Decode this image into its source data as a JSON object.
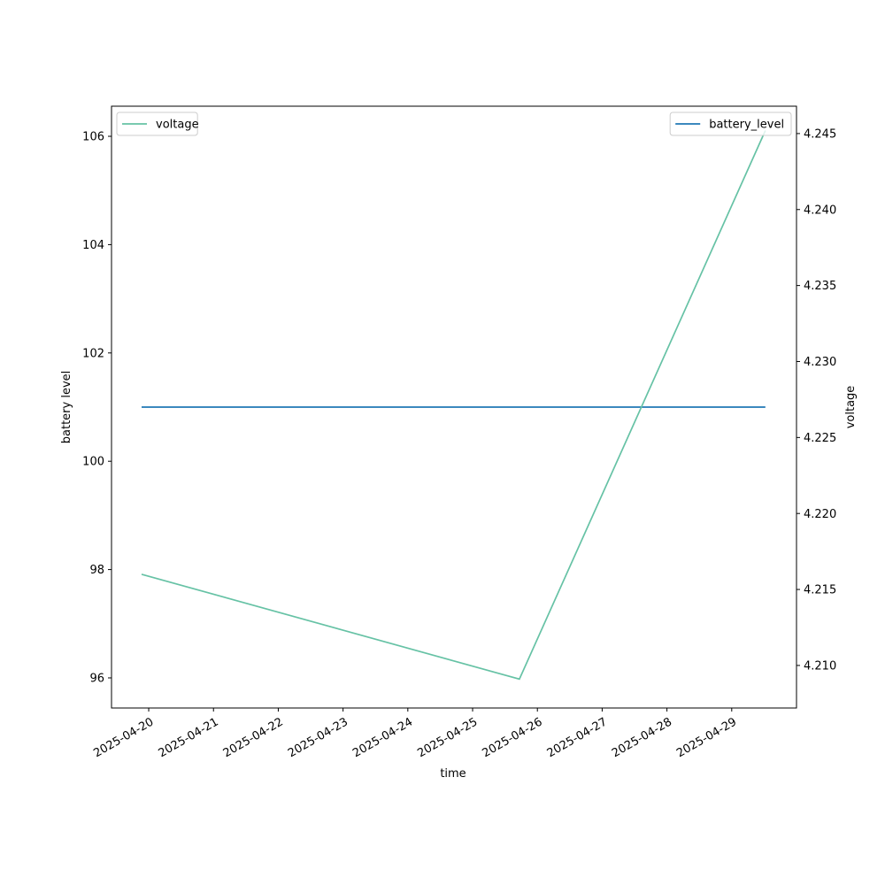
{
  "chart_data": {
    "type": "line",
    "xlabel": "time",
    "ylabel": "battery level",
    "y2label": "voltage",
    "x": [
      "2025-04-19T21:22",
      "2025-04-25T17:20",
      "2025-04-29T12:28"
    ],
    "series": [
      {
        "name": "battery_level",
        "color": "#1f77b4",
        "values": [
          101,
          101,
          101
        ],
        "axis": "y",
        "legend": "upper right"
      },
      {
        "name": "voltage",
        "color": "#66c2a5",
        "values": [
          4.216,
          4.2091,
          4.2452
        ],
        "axis": "y2",
        "legend": "upper left"
      }
    ],
    "xlim": [
      "2025-04-19T10:13",
      "2025-04-30T00:00"
    ],
    "xticks": [
      {
        "value": "2025-04-20T00:00",
        "label": "2025-04-20"
      },
      {
        "value": "2025-04-21T00:00",
        "label": "2025-04-21"
      },
      {
        "value": "2025-04-22T00:00",
        "label": "2025-04-22"
      },
      {
        "value": "2025-04-23T00:00",
        "label": "2025-04-23"
      },
      {
        "value": "2025-04-24T00:00",
        "label": "2025-04-24"
      },
      {
        "value": "2025-04-25T00:00",
        "label": "2025-04-25"
      },
      {
        "value": "2025-04-26T00:00",
        "label": "2025-04-26"
      },
      {
        "value": "2025-04-27T00:00",
        "label": "2025-04-27"
      },
      {
        "value": "2025-04-28T00:00",
        "label": "2025-04-28"
      },
      {
        "value": "2025-04-29T00:00",
        "label": "2025-04-29"
      }
    ],
    "ylim": [
      95.444,
      106.556
    ],
    "yticks": [
      96,
      98,
      100,
      102,
      104,
      106
    ],
    "y2lim": [
      4.2072,
      4.2468
    ],
    "y2ticks": [
      {
        "value": 4.21,
        "label": "4.210"
      },
      4.215,
      {
        "value": 4.22,
        "label": "4.220"
      },
      4.225,
      {
        "value": 4.23,
        "label": "4.230"
      },
      4.235,
      {
        "value": 4.24,
        "label": "4.240"
      },
      4.245
    ],
    "grid": false
  }
}
